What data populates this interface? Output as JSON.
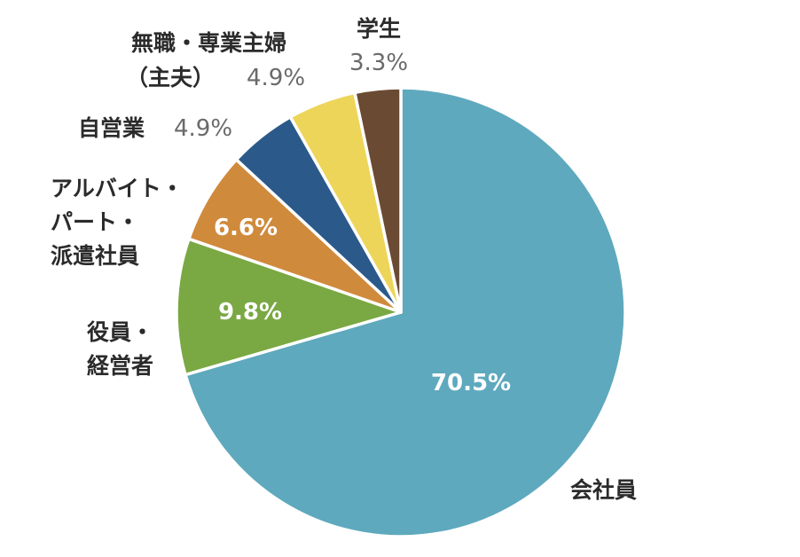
{
  "chart_data": {
    "type": "pie",
    "start_angle_deg": 0,
    "direction": "clockwise",
    "slices": [
      {
        "label": "会社員",
        "value": 70.5,
        "value_text": "70.5%",
        "color": "#5ea9be"
      },
      {
        "label": "役員・経営者",
        "label_lines": [
          "役員・",
          "経営者"
        ],
        "value": 9.8,
        "value_text": "9.8%",
        "color": "#7aa843"
      },
      {
        "label": "アルバイト・パート・派遣社員",
        "label_lines": [
          "アルバイト・",
          "パート・",
          "派遣社員"
        ],
        "value": 6.6,
        "value_text": "6.6%",
        "color": "#d08a3c"
      },
      {
        "label": "自営業",
        "value": 4.9,
        "value_text": "4.9%",
        "color": "#2b5a8a"
      },
      {
        "label": "無職・専業主婦（主夫）",
        "label_lines": [
          "無職・専業主婦",
          "（主夫）"
        ],
        "value": 4.9,
        "value_text": "4.9%",
        "color": "#edd55a"
      },
      {
        "label": "学生",
        "value": 3.3,
        "value_text": "3.3%",
        "color": "#6b4a33"
      }
    ]
  }
}
